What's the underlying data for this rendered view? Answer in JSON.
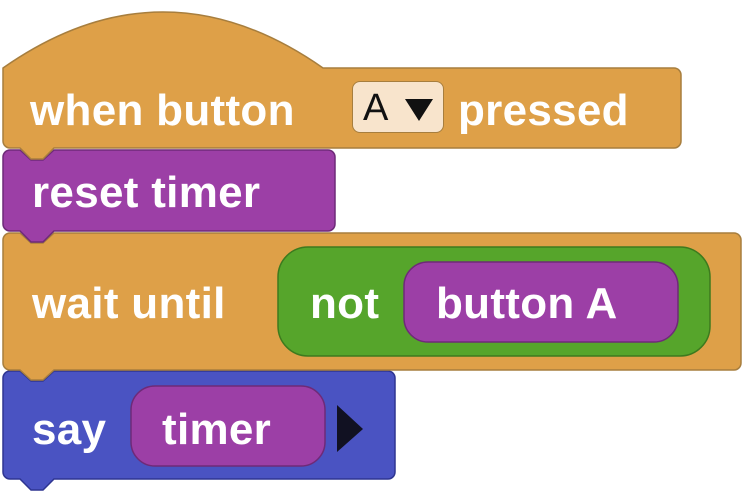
{
  "colors": {
    "event_orange": "#dea048",
    "timer_purple": "#9c3fa6",
    "logic_green": "#56a52b",
    "looks_blue": "#4a53c2",
    "dropdown_bg": "#f8e4cc"
  },
  "hat_block": {
    "prefix": "when button",
    "dropdown_value": "A",
    "suffix": "pressed"
  },
  "reset_block": {
    "label": "reset timer"
  },
  "wait_block": {
    "label": "wait until",
    "not_label": "not",
    "button_reporter": "button A"
  },
  "say_block": {
    "label": "say",
    "reporter": "timer",
    "expand_icon": "triangle-right-icon"
  }
}
